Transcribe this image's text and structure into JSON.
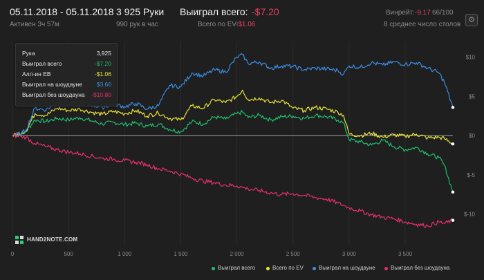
{
  "header": {
    "date_range": "05.11.2018 - 05.11.2018",
    "active_time": "Активен 3ч 57м",
    "hands_count": "3 925 Руки",
    "hands_per_hour": "990 рук в час",
    "won_total_label": "Выиграл всего:",
    "won_total_value": "-$7.20",
    "ev_label": "Всего по EV:",
    "ev_value": "-$1.06",
    "winrate_label": "Винрейт:",
    "winrate_value": "-9.17",
    "winrate_suffix": "66/100",
    "tables_text": "8 среднее число столов",
    "settings_icon": "gear-icon"
  },
  "tooltip": {
    "rows": [
      {
        "label": "Рука",
        "value": "3,925",
        "color": "#e6e6e6"
      },
      {
        "label": "Выиграл всего",
        "value": "-$7.20",
        "color": "#1fbf6e"
      },
      {
        "label": "Алл-ин EB",
        "value": "-$1.06",
        "color": "#e8e23a"
      },
      {
        "label": "Выиграл на шоудауне",
        "value": "$3.60",
        "color": "#3c8fe6"
      },
      {
        "label": "Выиграл без шоудауна",
        "value": "-$10.80",
        "color": "#e8306a"
      }
    ]
  },
  "logo": {
    "text": "HAND2NOTE.COM"
  },
  "colors": {
    "won": "#1fbf6e",
    "ev": "#e8e23a",
    "sd": "#3c8fe6",
    "nsd": "#e8306a",
    "negative": "#e8425f"
  },
  "chart_data": {
    "type": "line",
    "xlabel": "",
    "ylabel": "",
    "xlim": [
      0,
      3925
    ],
    "ylim": [
      -14,
      12
    ],
    "x_ticks": [
      0,
      500,
      1000,
      1500,
      2000,
      2500,
      3000,
      3500
    ],
    "x_tick_labels": [
      "0",
      "500",
      "1 000",
      "1 500",
      "2 000",
      "2 500",
      "3 000",
      "3 500"
    ],
    "y_ticks": [
      10,
      5,
      0,
      -5,
      -10
    ],
    "y_tick_labels": [
      "$10",
      "$5",
      "$0",
      "$-5",
      "$-10"
    ],
    "grid": "vertical",
    "legend_position": "bottom-right",
    "series": [
      {
        "name": "Выиграл всего",
        "color": "#1fbf6e",
        "x": [
          0,
          80,
          120,
          200,
          300,
          400,
          500,
          600,
          700,
          800,
          900,
          1000,
          1100,
          1200,
          1300,
          1400,
          1500,
          1600,
          1700,
          1800,
          1900,
          2000,
          2050,
          2100,
          2200,
          2300,
          2400,
          2500,
          2600,
          2700,
          2800,
          2900,
          2950,
          3000,
          3100,
          3200,
          3300,
          3400,
          3500,
          3600,
          3700,
          3800,
          3850,
          3925
        ],
        "values": [
          0,
          0.2,
          0.5,
          2.0,
          1.8,
          2.2,
          2.0,
          2.3,
          1.9,
          1.5,
          1.7,
          1.4,
          1.6,
          1.2,
          1.5,
          0.8,
          0.5,
          1.8,
          1.5,
          2.4,
          2.1,
          2.8,
          3.0,
          2.3,
          2.6,
          2.0,
          2.4,
          2.5,
          2.2,
          2.6,
          2.4,
          2.0,
          1.6,
          -0.5,
          -0.8,
          -1.2,
          -0.6,
          -1.4,
          -1.8,
          -1.5,
          -2.3,
          -2.8,
          -3.8,
          -7.2
        ]
      },
      {
        "name": "Всего по EV",
        "color": "#e8e23a",
        "x": [
          0,
          80,
          120,
          200,
          300,
          400,
          500,
          600,
          700,
          800,
          900,
          1000,
          1100,
          1200,
          1300,
          1400,
          1500,
          1600,
          1700,
          1800,
          1900,
          2000,
          2050,
          2100,
          2200,
          2300,
          2400,
          2500,
          2600,
          2700,
          2800,
          2900,
          2950,
          3000,
          3100,
          3200,
          3300,
          3400,
          3500,
          3600,
          3700,
          3800,
          3850,
          3925
        ],
        "values": [
          0,
          0.3,
          0.6,
          2.8,
          2.6,
          3.5,
          3.2,
          3.4,
          3.0,
          2.7,
          3.1,
          2.8,
          3.2,
          2.5,
          2.9,
          2.2,
          2.0,
          3.8,
          3.5,
          4.6,
          4.2,
          5.0,
          5.8,
          4.6,
          4.8,
          4.2,
          4.5,
          3.5,
          3.2,
          3.6,
          3.4,
          3.0,
          2.6,
          0.2,
          0.0,
          0.3,
          -0.2,
          0.1,
          -0.1,
          0.2,
          -0.3,
          -0.2,
          -0.4,
          -1.06
        ]
      },
      {
        "name": "Выиграл на шоудауне",
        "color": "#3c8fe6",
        "x": [
          0,
          80,
          120,
          200,
          300,
          400,
          500,
          600,
          700,
          800,
          900,
          1000,
          1100,
          1200,
          1300,
          1400,
          1500,
          1600,
          1700,
          1800,
          1900,
          2000,
          2050,
          2100,
          2200,
          2300,
          2400,
          2500,
          2600,
          2700,
          2800,
          2900,
          2950,
          3000,
          3100,
          3200,
          3300,
          3400,
          3500,
          3600,
          3700,
          3800,
          3850,
          3925
        ],
        "values": [
          0,
          0.3,
          0.7,
          3.5,
          3.3,
          4.2,
          4.0,
          4.3,
          3.9,
          3.6,
          4.0,
          3.7,
          4.1,
          3.4,
          3.8,
          6.4,
          6.2,
          8.0,
          7.6,
          8.4,
          8.1,
          10.0,
          10.3,
          9.2,
          9.4,
          8.6,
          8.9,
          8.8,
          8.4,
          8.6,
          8.5,
          8.3,
          7.8,
          8.9,
          8.7,
          9.3,
          9.0,
          9.4,
          9.1,
          9.3,
          8.6,
          8.0,
          6.8,
          3.6
        ]
      },
      {
        "name": "Выиграл без шоудауна",
        "color": "#e8306a",
        "x": [
          0,
          80,
          120,
          200,
          300,
          400,
          500,
          600,
          700,
          800,
          900,
          1000,
          1100,
          1200,
          1300,
          1400,
          1500,
          1600,
          1700,
          1800,
          1900,
          2000,
          2050,
          2100,
          2200,
          2300,
          2400,
          2500,
          2600,
          2700,
          2800,
          2900,
          2950,
          3000,
          3100,
          3200,
          3300,
          3400,
          3500,
          3600,
          3700,
          3800,
          3850,
          3925
        ],
        "values": [
          0,
          -0.1,
          -0.2,
          -1.0,
          -1.4,
          -1.8,
          -2.1,
          -2.3,
          -2.6,
          -2.9,
          -3.0,
          -3.2,
          -3.4,
          -3.7,
          -4.2,
          -4.5,
          -4.9,
          -5.4,
          -5.8,
          -6.0,
          -6.3,
          -6.4,
          -6.6,
          -6.8,
          -7.0,
          -7.3,
          -7.5,
          -7.4,
          -7.6,
          -7.9,
          -8.1,
          -8.6,
          -8.9,
          -9.2,
          -9.6,
          -10.1,
          -10.4,
          -10.6,
          -11.0,
          -11.3,
          -11.5,
          -11.0,
          -11.2,
          -10.8
        ]
      }
    ]
  },
  "legend": {
    "items": [
      {
        "label": "Выиграл всего",
        "color": "#1fbf6e"
      },
      {
        "label": "Всего по EV",
        "color": "#e8e23a"
      },
      {
        "label": "Выиграл на шоудауне",
        "color": "#3c8fe6"
      },
      {
        "label": "Выиграл без шоудауна",
        "color": "#e8306a"
      }
    ]
  }
}
